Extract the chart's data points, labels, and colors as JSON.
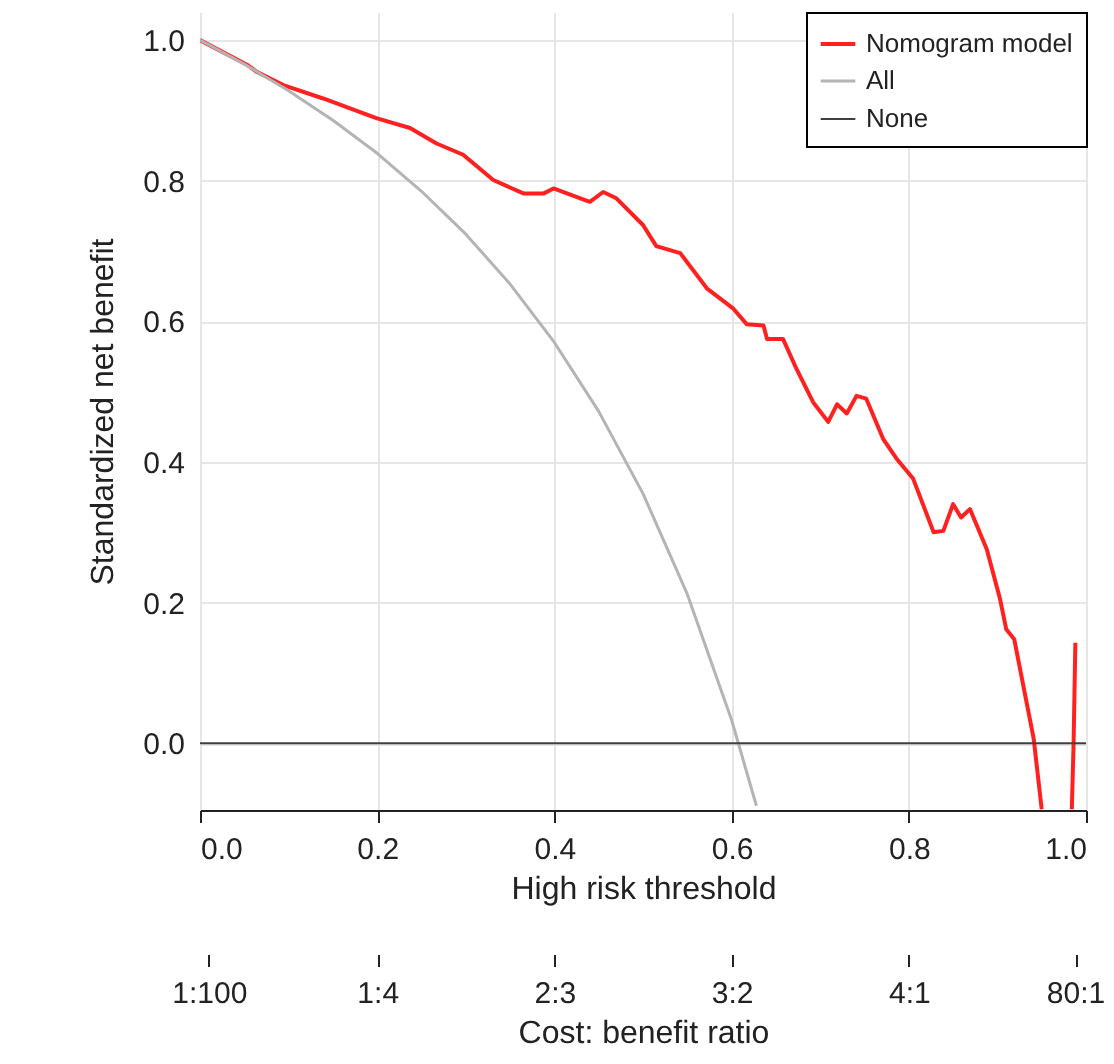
{
  "chart_data": {
    "type": "line",
    "xlabel": "High risk threshold",
    "ylabel": "Standardized net benefit",
    "x2label": "Cost: benefit ratio",
    "xlim": [
      0,
      1
    ],
    "ylim": [
      -0.095,
      1.04
    ],
    "xticks": [
      {
        "value": 0,
        "label": "0.0"
      },
      {
        "value": 0.2,
        "label": "0.2"
      },
      {
        "value": 0.4,
        "label": "0.4"
      },
      {
        "value": 0.6,
        "label": "0.6"
      },
      {
        "value": 0.8,
        "label": "0.8"
      },
      {
        "value": 1,
        "label": "1.0"
      }
    ],
    "yticks": [
      {
        "value": 0,
        "label": "0.0"
      },
      {
        "value": 0.2,
        "label": "0.2"
      },
      {
        "value": 0.4,
        "label": "0.4"
      },
      {
        "value": 0.6,
        "label": "0.6"
      },
      {
        "value": 0.8,
        "label": "0.8"
      },
      {
        "value": 1,
        "label": "1.0"
      }
    ],
    "annotations": [
      "1:100",
      "1:4",
      "2:3",
      "3:2",
      "4:1",
      "80:1"
    ],
    "grid": true,
    "legend": "top right",
    "marker": "none",
    "line_style": "solid",
    "series": [
      {
        "name": "Nomogram model",
        "color": "#ff2020",
        "x": [
          0,
          0.053,
          0.064,
          0.094,
          0.139,
          0.199,
          0.237,
          0.267,
          0.297,
          0.331,
          0.365,
          0.388,
          0.399,
          0.44,
          0.455,
          0.47,
          0.5,
          0.515,
          0.542,
          0.572,
          0.602,
          0.617,
          0.636,
          0.64,
          0.658,
          0.673,
          0.692,
          0.709,
          0.719,
          0.73,
          0.741,
          0.752,
          0.771,
          0.786,
          0.805,
          0.828,
          0.839,
          0.85,
          0.859,
          0.869,
          0.888,
          0.903,
          0.91,
          0.919,
          0.941,
          0.95,
          0.97,
          0.984,
          0.986,
          0.988
        ],
        "values": [
          1.0,
          0.965,
          0.955,
          0.936,
          0.917,
          0.889,
          0.875,
          0.853,
          0.837,
          0.801,
          0.782,
          0.782,
          0.789,
          0.77,
          0.784,
          0.775,
          0.737,
          0.707,
          0.697,
          0.647,
          0.618,
          0.596,
          0.594,
          0.575,
          0.575,
          0.533,
          0.485,
          0.457,
          0.482,
          0.469,
          0.494,
          0.49,
          0.433,
          0.405,
          0.376,
          0.3,
          0.302,
          0.34,
          0.321,
          0.333,
          0.276,
          0.205,
          0.162,
          0.148,
          0.006,
          -0.094,
          null,
          -0.094,
          0.0,
          0.143
        ]
      },
      {
        "name": "All",
        "color": "#b4b4b4",
        "x": [
          0,
          0.05,
          0.1,
          0.15,
          0.2,
          0.25,
          0.3,
          0.35,
          0.4,
          0.45,
          0.5,
          0.55,
          0.6,
          0.628
        ],
        "values": [
          1.0,
          0.966,
          0.928,
          0.886,
          0.839,
          0.785,
          0.724,
          0.653,
          0.57,
          0.472,
          0.355,
          0.212,
          0.033,
          -0.089
        ]
      },
      {
        "name": "None",
        "color": "#404040",
        "x": [
          0,
          1
        ],
        "values": [
          0,
          0
        ]
      }
    ]
  }
}
